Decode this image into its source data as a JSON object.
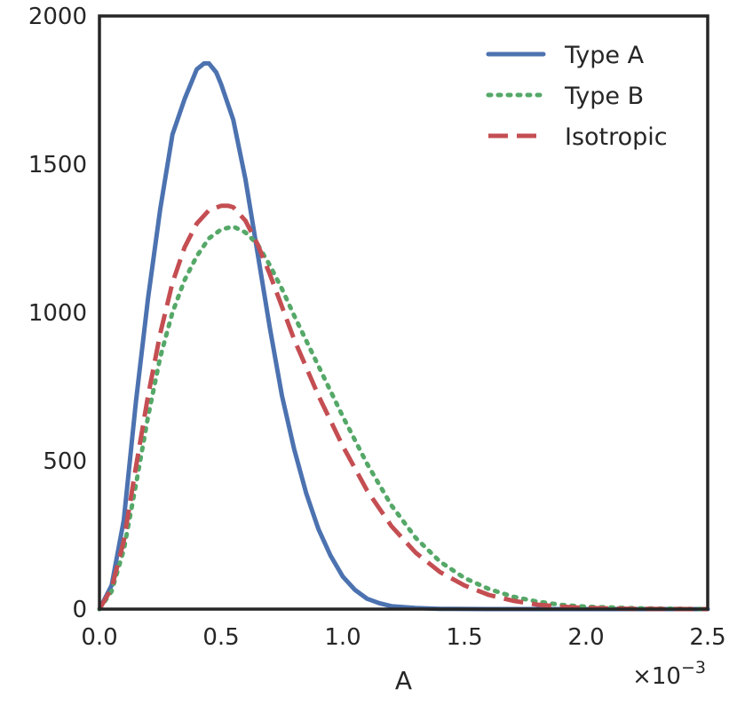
{
  "chart_data": {
    "type": "line",
    "title": "",
    "xlabel": "A",
    "ylabel": "",
    "x_scale_label": "×10",
    "x_scale_exponent": "−3",
    "xlim": [
      0.0,
      2.5
    ],
    "ylim": [
      0,
      2000
    ],
    "xticks": [
      "0.0",
      "0.5",
      "1.0",
      "1.5",
      "2.0",
      "2.5"
    ],
    "yticks": [
      "0",
      "500",
      "1000",
      "1500",
      "2000"
    ],
    "grid": false,
    "legend_position": "top-right",
    "series": [
      {
        "name": "Type A",
        "color": "#4c72b0",
        "style": "solid",
        "x": [
          0.0,
          0.05,
          0.1,
          0.15,
          0.2,
          0.25,
          0.3,
          0.35,
          0.4,
          0.43,
          0.45,
          0.48,
          0.5,
          0.55,
          0.6,
          0.65,
          0.7,
          0.75,
          0.8,
          0.85,
          0.9,
          0.95,
          1.0,
          1.05,
          1.1,
          1.15,
          1.2,
          1.3,
          1.4,
          1.6,
          2.0,
          2.5
        ],
        "y": [
          0,
          80,
          300,
          700,
          1050,
          1350,
          1600,
          1720,
          1820,
          1840,
          1840,
          1810,
          1770,
          1650,
          1450,
          1200,
          950,
          720,
          540,
          390,
          270,
          180,
          110,
          65,
          35,
          20,
          10,
          4,
          1,
          0,
          0,
          0
        ]
      },
      {
        "name": "Type B",
        "color": "#55a868",
        "style": "dotted",
        "x": [
          0.0,
          0.05,
          0.1,
          0.15,
          0.2,
          0.25,
          0.3,
          0.35,
          0.4,
          0.45,
          0.5,
          0.55,
          0.6,
          0.65,
          0.7,
          0.75,
          0.8,
          0.9,
          1.0,
          1.1,
          1.2,
          1.3,
          1.4,
          1.5,
          1.6,
          1.7,
          1.8,
          1.9,
          2.0,
          2.2,
          2.5
        ],
        "y": [
          0,
          60,
          200,
          420,
          650,
          850,
          1000,
          1110,
          1190,
          1250,
          1280,
          1290,
          1270,
          1230,
          1160,
          1080,
          990,
          820,
          650,
          490,
          350,
          240,
          160,
          105,
          68,
          42,
          25,
          14,
          8,
          3,
          0
        ]
      },
      {
        "name": "Isotropic",
        "color": "#c44e52",
        "style": "dashed",
        "x": [
          0.0,
          0.05,
          0.1,
          0.15,
          0.2,
          0.25,
          0.3,
          0.35,
          0.4,
          0.45,
          0.5,
          0.53,
          0.55,
          0.6,
          0.65,
          0.7,
          0.75,
          0.8,
          0.9,
          1.0,
          1.1,
          1.2,
          1.3,
          1.4,
          1.5,
          1.6,
          1.7,
          1.8,
          1.9,
          2.0,
          2.2,
          2.5
        ],
        "y": [
          0,
          70,
          230,
          480,
          720,
          930,
          1100,
          1220,
          1300,
          1345,
          1360,
          1360,
          1355,
          1310,
          1230,
          1130,
          1020,
          910,
          720,
          550,
          400,
          280,
          190,
          125,
          80,
          48,
          28,
          15,
          8,
          4,
          1,
          0
        ]
      }
    ]
  }
}
